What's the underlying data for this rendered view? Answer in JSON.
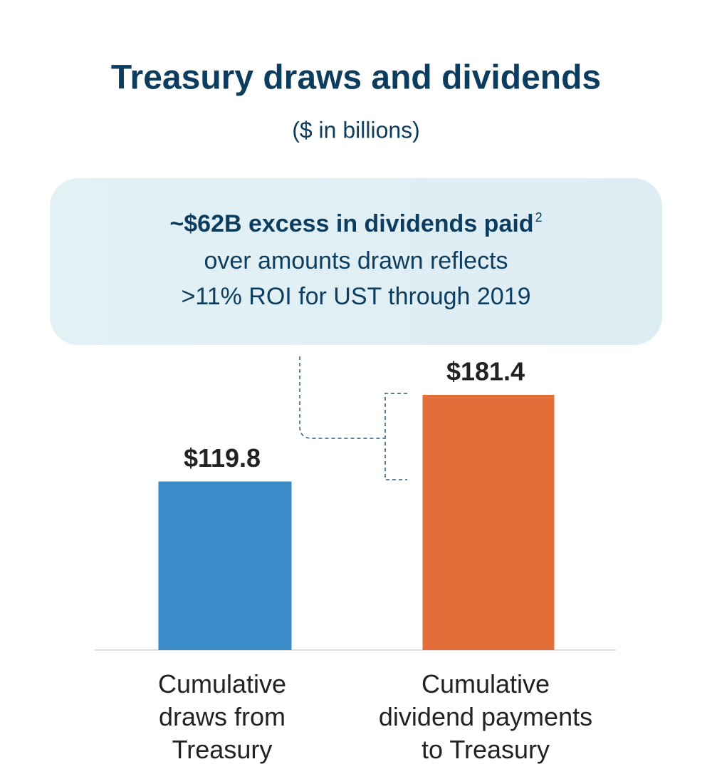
{
  "chart_data": {
    "type": "bar",
    "title": "Treasury draws and dividends",
    "subtitle": "($ in billions)",
    "annotation": {
      "headline": "~$62B excess in dividends paid",
      "footnote": "2",
      "lines": [
        "over amounts drawn reflects",
        ">11% ROI for UST through 2019"
      ]
    },
    "categories": [
      "Cumulative\ndraws from\nTreasury",
      "Cumulative\ndividend payments\nto Treasury"
    ],
    "values": [
      119.8,
      181.4
    ],
    "value_labels": [
      "$119.8",
      "$181.4"
    ],
    "colors": [
      "#3a8bc8",
      "#e46e3a"
    ]
  }
}
